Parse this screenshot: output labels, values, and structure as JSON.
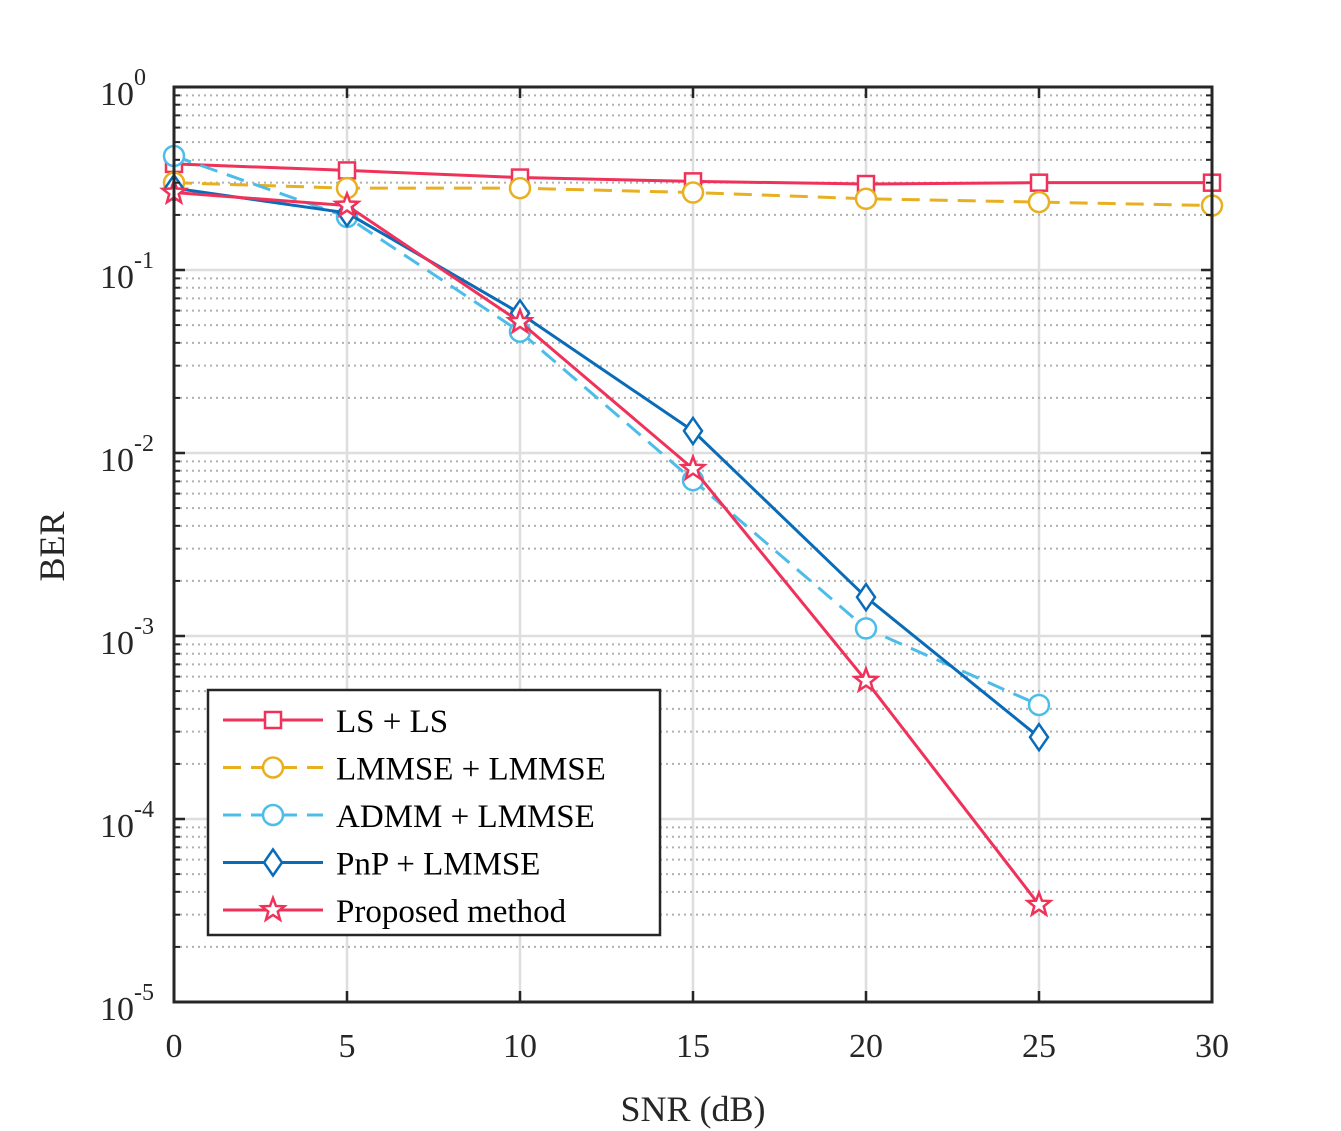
{
  "chart_data": {
    "type": "line",
    "xlabel": "SNR (dB)",
    "ylabel": "BER",
    "x_scale": "linear",
    "y_scale": "log",
    "xlim": [
      0,
      30
    ],
    "ylim": [
      1e-05,
      1
    ],
    "x_ticks": [
      "0",
      "5",
      "10",
      "15",
      "20",
      "25",
      "30"
    ],
    "y_ticks": [
      {
        "base": "10",
        "exp": "0"
      },
      {
        "base": "10",
        "exp": "-1"
      },
      {
        "base": "10",
        "exp": "-2"
      },
      {
        "base": "10",
        "exp": "-3"
      },
      {
        "base": "10",
        "exp": "-4"
      },
      {
        "base": "10",
        "exp": "-5"
      }
    ],
    "grid": true,
    "legend_position": "bottom-left",
    "series": [
      {
        "name": "LS + LS",
        "color": "#f0325a",
        "line_style": "solid",
        "marker": "square",
        "x": [
          0,
          5,
          10,
          15,
          20,
          25,
          30
        ],
        "values": [
          0.38,
          0.35,
          0.32,
          0.305,
          0.295,
          0.3,
          0.3
        ]
      },
      {
        "name": "LMMSE + LMMSE",
        "color": "#e8b020",
        "line_style": "dashed",
        "marker": "circle",
        "x": [
          0,
          5,
          10,
          15,
          20,
          25,
          30
        ],
        "values": [
          0.3,
          0.28,
          0.28,
          0.265,
          0.245,
          0.235,
          0.225
        ]
      },
      {
        "name": "ADMM + LMMSE",
        "color": "#4cbde8",
        "line_style": "dashed",
        "marker": "circle",
        "x": [
          0,
          5,
          10,
          15,
          20,
          25
        ],
        "values": [
          0.42,
          0.195,
          0.046,
          0.0071,
          0.0011,
          0.00042
        ]
      },
      {
        "name": "PnP + LMMSE",
        "color": "#0a6cb8",
        "line_style": "solid",
        "marker": "diamond",
        "x": [
          0,
          5,
          10,
          15,
          20,
          25
        ],
        "values": [
          0.28,
          0.205,
          0.058,
          0.0132,
          0.00163,
          0.00028
        ]
      },
      {
        "name": "Proposed method",
        "color": "#f0325a",
        "line_style": "solid",
        "marker": "star",
        "x": [
          0,
          5,
          10,
          15,
          20,
          25
        ],
        "values": [
          0.265,
          0.225,
          0.052,
          0.0082,
          0.00057,
          3.4e-05
        ]
      }
    ]
  }
}
